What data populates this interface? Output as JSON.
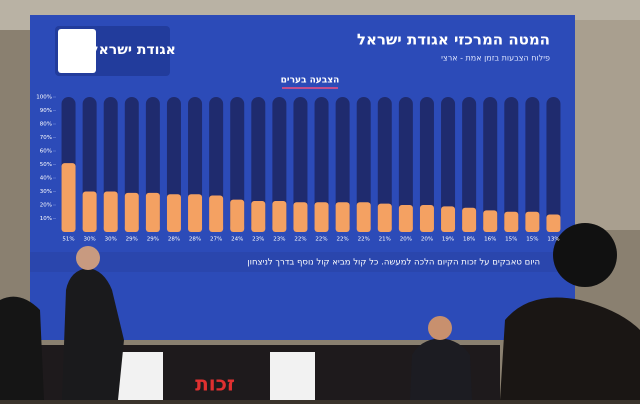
{
  "header": {
    "title": "המטה המרכזי אגודת ישראל",
    "subtitle": "פילוח הצבעות בזמן אמת - ארצי",
    "logo": "אגודת ישראל"
  },
  "chart_data": {
    "type": "bar",
    "title": "הצבעה בערים",
    "categories": [
      null,
      null,
      null,
      null,
      null,
      null,
      null,
      null,
      null,
      null,
      null,
      null,
      null,
      null,
      null,
      null,
      null,
      null,
      null,
      null,
      null,
      null,
      null,
      null
    ],
    "values": [
      51,
      30,
      30,
      29,
      29,
      28,
      28,
      27,
      24,
      23,
      23,
      22,
      22,
      22,
      22,
      21,
      20,
      20,
      19,
      18,
      16,
      15,
      15,
      13
    ],
    "value_labels": [
      "51%",
      "30%",
      "30%",
      "29%",
      "29%",
      "28%",
      "28%",
      "27%",
      "24%",
      "23%",
      "23%",
      "22%",
      "22%",
      "22%",
      "22%",
      "21%",
      "20%",
      "20%",
      "19%",
      "18%",
      "16%",
      "15%",
      "15%",
      "13%"
    ],
    "color": "#f4a162",
    "ylim": [
      0,
      100
    ],
    "yticks": [
      {
        "value": 10,
        "label": "10%"
      },
      {
        "value": 20,
        "label": "20%"
      },
      {
        "value": 30,
        "label": "30%"
      },
      {
        "value": 40,
        "label": "40%"
      },
      {
        "value": 50,
        "label": "50%"
      },
      {
        "value": 60,
        "label": "60%"
      },
      {
        "value": 70,
        "label": "70%"
      },
      {
        "value": 80,
        "label": "80%"
      },
      {
        "value": 90,
        "label": "90%"
      },
      {
        "value": 100,
        "label": "100%"
      }
    ]
  },
  "ticker": "היום טאבקים על זכות הקיום הלכה למעשה. כל קול מביא קול נוסף בדרך לניצחון",
  "banner": "זכות"
}
